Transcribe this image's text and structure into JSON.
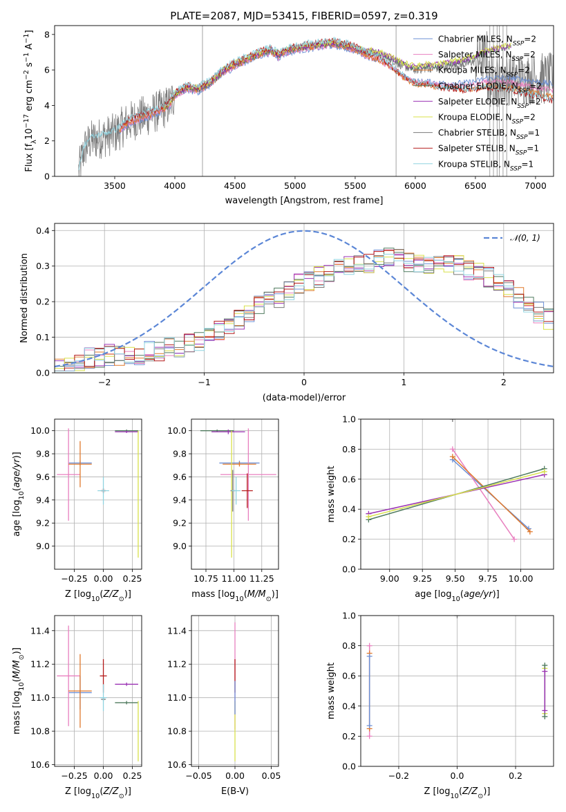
{
  "figure": {
    "title": "PLATE=2087, MJD=53415, FIBERID=0597, z=0.319"
  },
  "colors": {
    "chabrier_miles": "#6b8fd6",
    "salpeter_miles": "#e87fbf",
    "kroupa_miles": "#e0782a",
    "chabrier_elodie": "#4f7a5e",
    "salpeter_elodie": "#9b33b4",
    "kroupa_elodie": "#d8e04a",
    "chabrier_stelib": "#7a7a7a",
    "salpeter_stelib": "#b41a1a",
    "kroupa_stelib": "#8fd3e0",
    "normal": "#5b86d6",
    "grid": "#b0b0b0"
  },
  "chart_data": [
    {
      "id": "spectrum",
      "type": "line",
      "title": "PLATE=2087, MJD=53415, FIBERID=0597, z=0.319",
      "xlabel": "wavelength [Angstrom, rest frame]",
      "ylabel": "Flux [f_λ 10^-17 erg cm^-2 s^-1 A^-1]",
      "xlim": [
        3000,
        7150
      ],
      "ylim": [
        0,
        8.5
      ],
      "xticks": [
        "3500",
        "4000",
        "4500",
        "5000",
        "5500",
        "6000",
        "6500",
        "7000"
      ],
      "yticks": [
        "0",
        "2",
        "4",
        "6",
        "8"
      ],
      "grid": false,
      "legend_position": "upper right",
      "legend": [
        "Chabrier MILES, N_SSP=2",
        "Salpeter MILES, N_SSP=2",
        "Kroupa MILES, N_SSP=2",
        "Chabrier ELODIE, N_SSP=2",
        "Salpeter ELODIE, N_SSP=2",
        "Kroupa ELODIE, N_SSP=2",
        "Chabrier STELIB, N_SSP=1",
        "Salpeter STELIB, N_SSP=1",
        "Kroupa STELIB, N_SSP=1"
      ],
      "continuum": {
        "x": [
          3200,
          3250,
          3300,
          3400,
          3500,
          3600,
          3700,
          3800,
          3900,
          3950,
          4000,
          4100,
          4200,
          4300,
          4400,
          4500,
          4600,
          4700,
          4800,
          4860,
          4900,
          5000,
          5100,
          5200,
          5300,
          5400,
          5500,
          5600,
          5700,
          5800,
          5900,
          6000,
          6100,
          6200,
          6300,
          6400,
          6500,
          6600,
          6700,
          6800
        ],
        "y": [
          0.3,
          1.6,
          2.0,
          2.2,
          2.4,
          3.0,
          3.3,
          3.5,
          3.8,
          4.0,
          4.6,
          5.0,
          4.9,
          5.3,
          5.9,
          6.3,
          6.6,
          6.9,
          7.1,
          6.8,
          7.0,
          7.2,
          7.3,
          7.4,
          7.5,
          7.4,
          7.2,
          7.0,
          6.9,
          6.6,
          6.2,
          6.0,
          6.1,
          6.1,
          6.2,
          6.3,
          6.5,
          6.8,
          6.9,
          7.0
        ]
      },
      "miles_red_end": [
        5.8,
        5.2,
        4.4
      ],
      "elodie_red_end": [
        6.0,
        6.4,
        6.6
      ],
      "stelib_red_end": [
        4.9,
        4.4,
        4.2
      ]
    },
    {
      "id": "residuals",
      "type": "histogram",
      "xlabel": "(data-model)/error",
      "ylabel": "Normed distribution",
      "xlim": [
        -2.5,
        2.5
      ],
      "ylim": [
        0,
        0.42
      ],
      "xticks": [
        "-2",
        "-1",
        "0",
        "1",
        "2"
      ],
      "yticks": [
        "0.0",
        "0.1",
        "0.2",
        "0.3",
        "0.4"
      ],
      "grid": true,
      "legend_position": "upper right",
      "normal_label": "𝒩(0, 1)",
      "bin_width": 0.1,
      "mean_curve": [
        0.01,
        0.02,
        0.03,
        0.04,
        0.04,
        0.05,
        0.05,
        0.05,
        0.05,
        0.06,
        0.06,
        0.07,
        0.07,
        0.08,
        0.09,
        0.1,
        0.12,
        0.13,
        0.15,
        0.17,
        0.19,
        0.2,
        0.21,
        0.23,
        0.25,
        0.26,
        0.27,
        0.28,
        0.29,
        0.3,
        0.31,
        0.31,
        0.32,
        0.33,
        0.32,
        0.31,
        0.31,
        0.3,
        0.3,
        0.3,
        0.3,
        0.29,
        0.28,
        0.27,
        0.25,
        0.23,
        0.21,
        0.19,
        0.17,
        0.15
      ]
    },
    {
      "id": "age-vs-Z",
      "type": "scatter",
      "xlabel": "Z [log10(Z/Z⊙)]",
      "ylabel": "age [log10(age/yr)]",
      "xlim": [
        -0.42,
        0.33
      ],
      "ylim": [
        8.8,
        10.1
      ],
      "xticks": [
        "-0.25",
        "0.00",
        "0.25"
      ],
      "yticks": [
        "9.0",
        "9.2",
        "9.4",
        "9.6",
        "9.8",
        "10.0"
      ],
      "grid": true,
      "points": [
        {
          "model": "chabrier_miles",
          "x": -0.2,
          "y": 9.72,
          "xerr": 0.1,
          "yerr": 0.02
        },
        {
          "model": "salpeter_miles",
          "x": -0.3,
          "y": 9.62,
          "xerr": 0.1,
          "yerr": 0.4
        },
        {
          "model": "kroupa_miles",
          "x": -0.2,
          "y": 9.71,
          "xerr": 0.1,
          "yerr": 0.2
        },
        {
          "model": "chabrier_elodie",
          "x": 0.2,
          "y": 10.0,
          "xerr": 0.1,
          "yerr": 0.01
        },
        {
          "model": "salpeter_elodie",
          "x": 0.2,
          "y": 9.99,
          "xerr": 0.1,
          "yerr": 0.01
        },
        {
          "model": "kroupa_elodie",
          "x": 0.3,
          "y": 9.45,
          "xerr": 0.0,
          "yerr": 0.55
        },
        {
          "model": "chabrier_stelib",
          "x": 0.0,
          "y": 9.48,
          "xerr": 0.02,
          "yerr": 0.02
        },
        {
          "model": "salpeter_stelib",
          "x": 0.0,
          "y": 9.48,
          "xerr": 0.02,
          "yerr": 0.02
        },
        {
          "model": "kroupa_stelib",
          "x": 0.0,
          "y": 9.48,
          "xerr": 0.05,
          "yerr": 0.12
        }
      ]
    },
    {
      "id": "age-vs-mass",
      "type": "scatter",
      "xlabel": "mass [log10(M/M⊙)]",
      "ylabel": "",
      "xlim": [
        10.62,
        11.4
      ],
      "ylim": [
        8.8,
        10.1
      ],
      "xticks": [
        "10.75",
        "11.00",
        "11.25"
      ],
      "yticks": [
        "9.0",
        "9.2",
        "9.4",
        "9.6",
        "9.8",
        "10.0"
      ],
      "grid": true,
      "points": [
        {
          "model": "chabrier_miles",
          "x": 11.05,
          "y": 9.72,
          "xerr": 0.18,
          "yerr": 0.02
        },
        {
          "model": "salpeter_miles",
          "x": 11.13,
          "y": 9.62,
          "xerr": 0.25,
          "yerr": 0.4
        },
        {
          "model": "kroupa_miles",
          "x": 11.05,
          "y": 9.71,
          "xerr": 0.15,
          "yerr": 0.02
        },
        {
          "model": "chabrier_elodie",
          "x": 10.85,
          "y": 10.0,
          "xerr": 0.15,
          "yerr": 0.01
        },
        {
          "model": "salpeter_elodie",
          "x": 10.95,
          "y": 9.99,
          "xerr": 0.15,
          "yerr": 0.02
        },
        {
          "model": "kroupa_elodie",
          "x": 10.98,
          "y": 9.45,
          "xerr": 0.0,
          "yerr": 0.55
        },
        {
          "model": "chabrier_stelib",
          "x": 10.99,
          "y": 9.48,
          "xerr": 0.02,
          "yerr": 0.18
        },
        {
          "model": "salpeter_stelib",
          "x": 11.12,
          "y": 9.48,
          "xerr": 0.05,
          "yerr": 0.15
        },
        {
          "model": "kroupa_stelib",
          "x": 11.02,
          "y": 9.48,
          "xerr": 0.04,
          "yerr": 0.12
        }
      ]
    },
    {
      "id": "weight-vs-age",
      "type": "line",
      "xlabel": "age [log10(age/yr)]",
      "ylabel": "mass weight",
      "xlim": [
        8.78,
        10.25
      ],
      "ylim": [
        0,
        1
      ],
      "xticks": [
        "9.00",
        "9.25",
        "9.50",
        "9.75",
        "10.00"
      ],
      "yticks": [
        "0.0",
        "0.2",
        "0.4",
        "0.6",
        "0.8",
        "1.0"
      ],
      "grid": true,
      "series": [
        {
          "model": "chabrier_miles",
          "x": [
            9.48,
            10.06
          ],
          "y": [
            0.73,
            0.27
          ]
        },
        {
          "model": "salpeter_miles",
          "x": [
            9.48,
            9.95
          ],
          "y": [
            0.8,
            0.2
          ]
        },
        {
          "model": "kroupa_miles",
          "x": [
            9.48,
            10.07
          ],
          "y": [
            0.75,
            0.25
          ]
        },
        {
          "model": "chabrier_elodie",
          "x": [
            8.84,
            10.18
          ],
          "y": [
            0.33,
            0.67
          ]
        },
        {
          "model": "salpeter_elodie",
          "x": [
            8.84,
            10.18
          ],
          "y": [
            0.37,
            0.63
          ]
        },
        {
          "model": "kroupa_elodie",
          "x": [
            8.84,
            10.18
          ],
          "y": [
            0.35,
            0.65
          ]
        },
        {
          "model": "chabrier_stelib",
          "x": [
            9.48
          ],
          "y": [
            1.0
          ]
        }
      ]
    },
    {
      "id": "mass-vs-Z",
      "type": "scatter",
      "xlabel": "Z [log10(Z/Z⊙)]",
      "ylabel": "mass [log10(M/M⊙)]",
      "xlim": [
        -0.42,
        0.33
      ],
      "ylim": [
        10.59,
        11.49
      ],
      "xticks": [
        "-0.25",
        "0.00",
        "0.25"
      ],
      "yticks": [
        "10.6",
        "10.8",
        "11.0",
        "11.2",
        "11.4"
      ],
      "grid": true,
      "points": [
        {
          "model": "chabrier_miles",
          "x": -0.2,
          "y": 11.03,
          "xerr": 0.1,
          "yerr": 0.1
        },
        {
          "model": "salpeter_miles",
          "x": -0.3,
          "y": 11.13,
          "xerr": 0.1,
          "yerr": 0.3
        },
        {
          "model": "kroupa_miles",
          "x": -0.2,
          "y": 11.04,
          "xerr": 0.1,
          "yerr": 0.22
        },
        {
          "model": "chabrier_elodie",
          "x": 0.2,
          "y": 10.97,
          "xerr": 0.1,
          "yerr": 0.01
        },
        {
          "model": "salpeter_elodie",
          "x": 0.2,
          "y": 11.08,
          "xerr": 0.1,
          "yerr": 0.01
        },
        {
          "model": "kroupa_elodie",
          "x": 0.3,
          "y": 10.8,
          "xerr": 0.0,
          "yerr": 0.18
        },
        {
          "model": "chabrier_stelib",
          "x": 0.0,
          "y": 10.99,
          "xerr": 0.02,
          "yerr": 0.01
        },
        {
          "model": "salpeter_stelib",
          "x": 0.0,
          "y": 11.13,
          "xerr": 0.03,
          "yerr": 0.1
        },
        {
          "model": "kroupa_stelib",
          "x": 0.0,
          "y": 11.0,
          "xerr": 0.03,
          "yerr": 0.08
        }
      ]
    },
    {
      "id": "mass-vs-EBV",
      "type": "scatter",
      "xlabel": "E(B-V)",
      "ylabel": "",
      "xlim": [
        -0.06,
        0.06
      ],
      "ylim": [
        10.59,
        11.49
      ],
      "xticks": [
        "-0.05",
        "0.00",
        "0.05"
      ],
      "yticks": [
        "10.6",
        "10.8",
        "11.0",
        "11.2",
        "11.4"
      ],
      "grid": true,
      "points": [
        {
          "model": "salpeter_miles",
          "x": 0.0,
          "y": 11.13,
          "xerr": 0.0,
          "yerr": 0.32
        },
        {
          "model": "kroupa_elodie",
          "x": 0.0,
          "y": 10.8,
          "xerr": 0.0,
          "yerr": 0.18
        },
        {
          "model": "salpeter_stelib",
          "x": 0.0,
          "y": 11.13,
          "xerr": 0.0,
          "yerr": 0.1
        },
        {
          "model": "chabrier_miles",
          "x": 0.0,
          "y": 11.0,
          "xerr": 0.0,
          "yerr": 0.1
        }
      ]
    },
    {
      "id": "weight-vs-Z",
      "type": "scatter",
      "xlabel": "Z [log10(Z/Z⊙)]",
      "ylabel": "mass weight",
      "xlim": [
        -0.33,
        0.33
      ],
      "ylim": [
        0,
        1
      ],
      "xticks": [
        "-0.2",
        "0.0",
        "0.2"
      ],
      "yticks": [
        "0.0",
        "0.2",
        "0.4",
        "0.6",
        "0.8",
        "1.0"
      ],
      "grid": true,
      "series": [
        {
          "model": "salpeter_miles",
          "x": [
            -0.3,
            -0.3
          ],
          "y": [
            0.2,
            0.8
          ]
        },
        {
          "model": "kroupa_miles",
          "x": [
            -0.3,
            -0.3
          ],
          "y": [
            0.25,
            0.75
          ]
        },
        {
          "model": "chabrier_miles",
          "x": [
            -0.3,
            -0.3
          ],
          "y": [
            0.27,
            0.73
          ]
        },
        {
          "model": "kroupa_elodie",
          "x": [
            0.3,
            0.3
          ],
          "y": [
            0.35,
            0.65
          ]
        },
        {
          "model": "chabrier_elodie",
          "x": [
            0.3,
            0.3
          ],
          "y": [
            0.33,
            0.67
          ]
        },
        {
          "model": "salpeter_elodie",
          "x": [
            0.3,
            0.3
          ],
          "y": [
            0.37,
            0.63
          ]
        },
        {
          "model": "chabrier_stelib",
          "x": [
            0.0
          ],
          "y": [
            1.0
          ]
        }
      ]
    }
  ]
}
